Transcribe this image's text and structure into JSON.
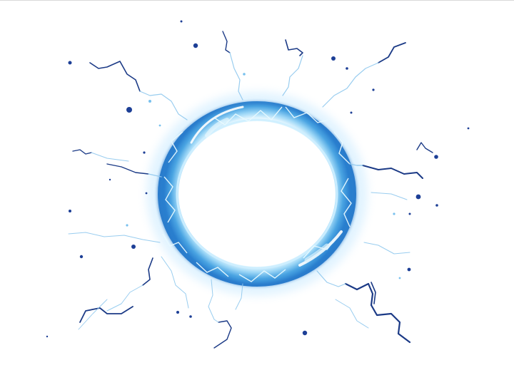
{
  "image": {
    "subject": "electric-ring",
    "colors": {
      "background": "#ffffff",
      "ring_light": "#bfe9ff",
      "ring_mid": "#5ab4ea",
      "ring_deep": "#1f6fc4",
      "bolt_dark": "#16307a",
      "bolt_light": "#8fd4ff",
      "glow": "#e6f7ff"
    }
  }
}
